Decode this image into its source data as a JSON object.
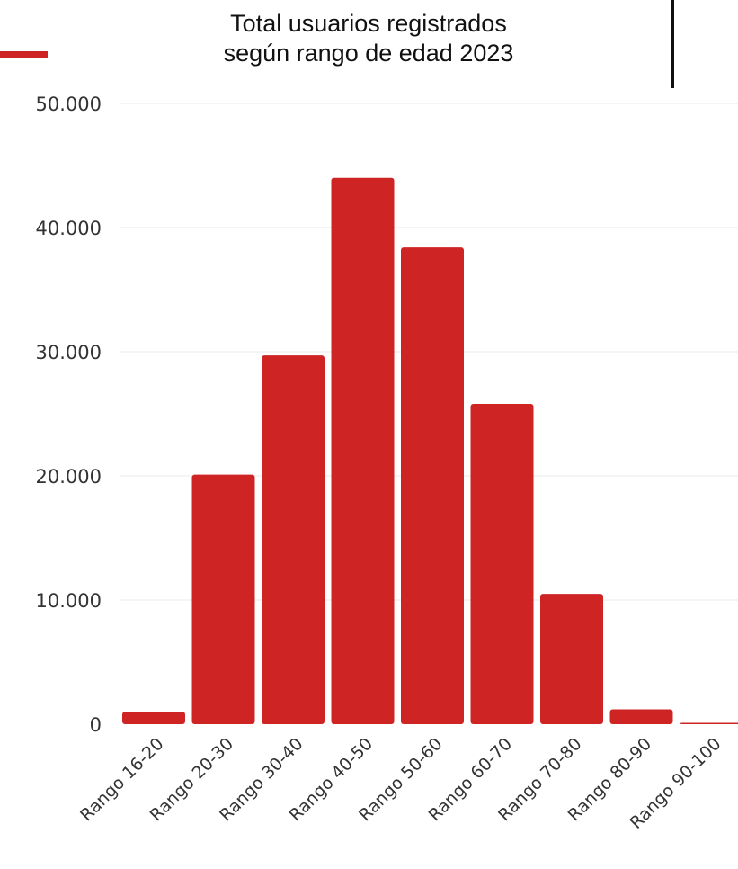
{
  "chart_data": {
    "type": "bar",
    "title_lines": [
      "Total usuarios registrados",
      "según rango de edad 2023"
    ],
    "categories": [
      "Rango 16-20",
      "Rango 20-30",
      "Rango 30-40",
      "Rango 40-50",
      "Rango 50-60",
      "Rango 60-70",
      "Rango 70-80",
      "Rango 80-90",
      "Rango 90-100"
    ],
    "values": [
      1000,
      20100,
      29700,
      44000,
      38400,
      25800,
      10500,
      1200,
      100
    ],
    "yticks": [
      0,
      10000,
      20000,
      30000,
      40000,
      50000
    ],
    "ytick_labels": [
      "0",
      "10.000",
      "20.000",
      "30.000",
      "40.000",
      "50.000"
    ],
    "ylim": [
      0,
      50000
    ],
    "grid": true,
    "legend": "none",
    "colors": {
      "bar": "#cf2424",
      "grid": "#e8e8e8",
      "text": "#333333",
      "accent": "#cf2424"
    }
  }
}
